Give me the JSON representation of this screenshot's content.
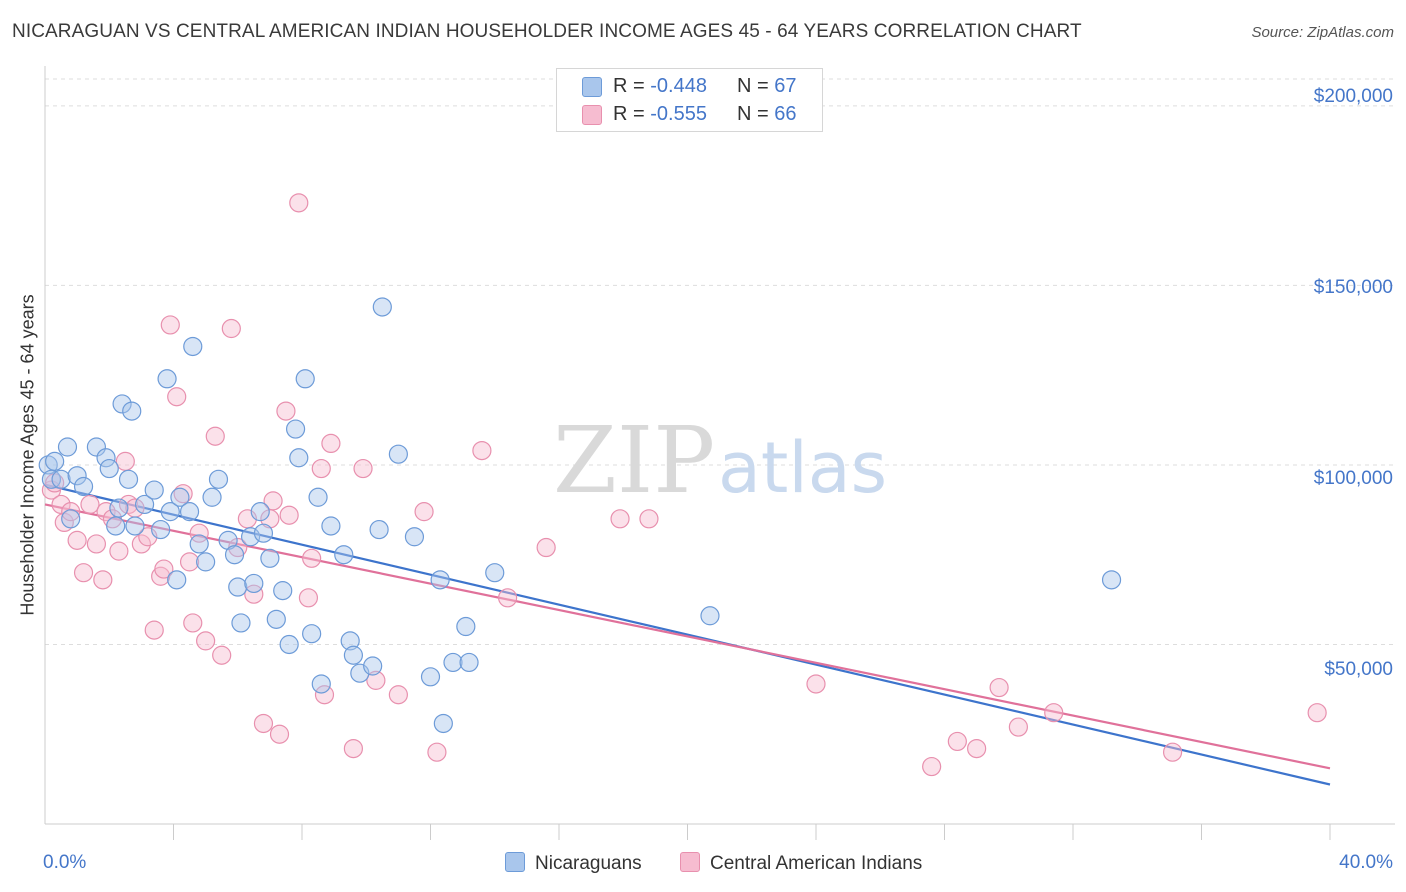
{
  "title": "NICARAGUAN VS CENTRAL AMERICAN INDIAN HOUSEHOLDER INCOME AGES 45 - 64 YEARS CORRELATION CHART",
  "source": "Source: ZipAtlas.com",
  "watermark": {
    "zip": "ZIP",
    "atlas": "atlas"
  },
  "legend": {
    "rows": [
      {
        "r_label": "R = ",
        "r_value": "-0.448",
        "n_label": "N = ",
        "n_value": "67"
      },
      {
        "r_label": "R = ",
        "r_value": "-0.555",
        "n_label": "N = ",
        "n_value": "66"
      }
    ]
  },
  "colors": {
    "blue_fill": "#a9c6ec",
    "blue_stroke": "#6d9bd8",
    "blue_line": "#3d74cc",
    "pink_fill": "#f6bcd0",
    "pink_stroke": "#e890ae",
    "pink_line": "#e0719a",
    "tick_label": "#4476c9"
  },
  "chart_data": {
    "type": "scatter",
    "title": "NICARAGUAN VS CENTRAL AMERICAN INDIAN HOUSEHOLDER INCOME AGES 45 - 64 YEARS CORRELATION CHART",
    "xlabel": "",
    "ylabel": "Householder Income Ages 45 - 64 years",
    "xlim": [
      0,
      40
    ],
    "ylim": [
      0,
      210000
    ],
    "x_tick_labels": [
      "0.0%",
      "40.0%"
    ],
    "y_ticks": [
      50000,
      100000,
      150000,
      200000
    ],
    "y_tick_labels": [
      "$50,000",
      "$100,000",
      "$150,000",
      "$200,000"
    ],
    "grid": true,
    "legend_position": "bottom",
    "series": [
      {
        "name": "Nicaraguans",
        "r": -0.448,
        "n": 67,
        "trend": {
          "x": [
            0,
            40
          ],
          "y": [
            94500,
            11000
          ]
        },
        "points": [
          [
            0.1,
            100000
          ],
          [
            0.2,
            96000
          ],
          [
            0.3,
            101000
          ],
          [
            0.5,
            96000
          ],
          [
            0.7,
            105000
          ],
          [
            0.8,
            85000
          ],
          [
            1.0,
            97000
          ],
          [
            1.2,
            94000
          ],
          [
            1.6,
            105000
          ],
          [
            1.9,
            102000
          ],
          [
            2.0,
            99000
          ],
          [
            2.2,
            83000
          ],
          [
            2.3,
            88000
          ],
          [
            2.4,
            117000
          ],
          [
            2.6,
            96000
          ],
          [
            2.7,
            115000
          ],
          [
            2.8,
            83000
          ],
          [
            3.1,
            89000
          ],
          [
            3.4,
            93000
          ],
          [
            3.6,
            82000
          ],
          [
            3.8,
            124000
          ],
          [
            3.9,
            87000
          ],
          [
            4.1,
            68000
          ],
          [
            4.2,
            91000
          ],
          [
            4.5,
            87000
          ],
          [
            4.6,
            133000
          ],
          [
            4.8,
            78000
          ],
          [
            5.0,
            73000
          ],
          [
            5.2,
            91000
          ],
          [
            5.4,
            96000
          ],
          [
            5.7,
            79000
          ],
          [
            5.9,
            75000
          ],
          [
            6.0,
            66000
          ],
          [
            6.1,
            56000
          ],
          [
            6.4,
            80000
          ],
          [
            6.5,
            67000
          ],
          [
            6.7,
            87000
          ],
          [
            6.8,
            81000
          ],
          [
            7.0,
            74000
          ],
          [
            7.2,
            57000
          ],
          [
            7.4,
            65000
          ],
          [
            7.6,
            50000
          ],
          [
            7.8,
            110000
          ],
          [
            7.9,
            102000
          ],
          [
            8.1,
            124000
          ],
          [
            8.3,
            53000
          ],
          [
            8.5,
            91000
          ],
          [
            8.6,
            39000
          ],
          [
            8.9,
            83000
          ],
          [
            9.3,
            75000
          ],
          [
            9.5,
            51000
          ],
          [
            9.6,
            47000
          ],
          [
            9.8,
            42000
          ],
          [
            10.2,
            44000
          ],
          [
            10.4,
            82000
          ],
          [
            10.5,
            144000
          ],
          [
            11.0,
            103000
          ],
          [
            11.5,
            80000
          ],
          [
            12.0,
            41000
          ],
          [
            12.3,
            68000
          ],
          [
            12.4,
            28000
          ],
          [
            12.7,
            45000
          ],
          [
            13.1,
            55000
          ],
          [
            13.2,
            45000
          ],
          [
            14.0,
            70000
          ],
          [
            20.7,
            58000
          ],
          [
            33.2,
            68000
          ]
        ]
      },
      {
        "name": "Central American Indians",
        "r": -0.555,
        "n": 66,
        "trend": {
          "x": [
            0,
            40
          ],
          "y": [
            89000,
            15500
          ]
        },
        "points": [
          [
            0.2,
            93000
          ],
          [
            0.3,
            95000
          ],
          [
            0.5,
            89000
          ],
          [
            0.6,
            84000
          ],
          [
            0.8,
            87000
          ],
          [
            1.0,
            79000
          ],
          [
            1.2,
            70000
          ],
          [
            1.4,
            89000
          ],
          [
            1.6,
            78000
          ],
          [
            1.8,
            68000
          ],
          [
            1.9,
            87000
          ],
          [
            2.1,
            85000
          ],
          [
            2.3,
            76000
          ],
          [
            2.5,
            101000
          ],
          [
            2.6,
            89000
          ],
          [
            2.8,
            88000
          ],
          [
            3.0,
            78000
          ],
          [
            3.2,
            80000
          ],
          [
            3.4,
            54000
          ],
          [
            3.6,
            69000
          ],
          [
            3.7,
            71000
          ],
          [
            3.9,
            139000
          ],
          [
            4.1,
            119000
          ],
          [
            4.3,
            92000
          ],
          [
            4.5,
            73000
          ],
          [
            4.6,
            56000
          ],
          [
            4.8,
            81000
          ],
          [
            5.0,
            51000
          ],
          [
            5.3,
            108000
          ],
          [
            5.5,
            47000
          ],
          [
            5.8,
            138000
          ],
          [
            6.0,
            77000
          ],
          [
            6.3,
            85000
          ],
          [
            6.5,
            64000
          ],
          [
            6.8,
            28000
          ],
          [
            7.0,
            85000
          ],
          [
            7.1,
            90000
          ],
          [
            7.3,
            25000
          ],
          [
            7.5,
            115000
          ],
          [
            7.6,
            86000
          ],
          [
            7.9,
            173000
          ],
          [
            8.2,
            63000
          ],
          [
            8.3,
            74000
          ],
          [
            8.6,
            99000
          ],
          [
            8.7,
            36000
          ],
          [
            8.9,
            106000
          ],
          [
            9.6,
            21000
          ],
          [
            9.9,
            99000
          ],
          [
            10.3,
            40000
          ],
          [
            11.0,
            36000
          ],
          [
            11.8,
            87000
          ],
          [
            12.2,
            20000
          ],
          [
            13.6,
            104000
          ],
          [
            14.4,
            63000
          ],
          [
            15.6,
            77000
          ],
          [
            17.9,
            85000
          ],
          [
            18.8,
            85000
          ],
          [
            24.0,
            39000
          ],
          [
            27.6,
            16000
          ],
          [
            28.4,
            23000
          ],
          [
            29.0,
            21000
          ],
          [
            29.7,
            38000
          ],
          [
            30.3,
            27000
          ],
          [
            31.4,
            31000
          ],
          [
            35.1,
            20000
          ],
          [
            39.6,
            31000
          ]
        ]
      }
    ]
  }
}
